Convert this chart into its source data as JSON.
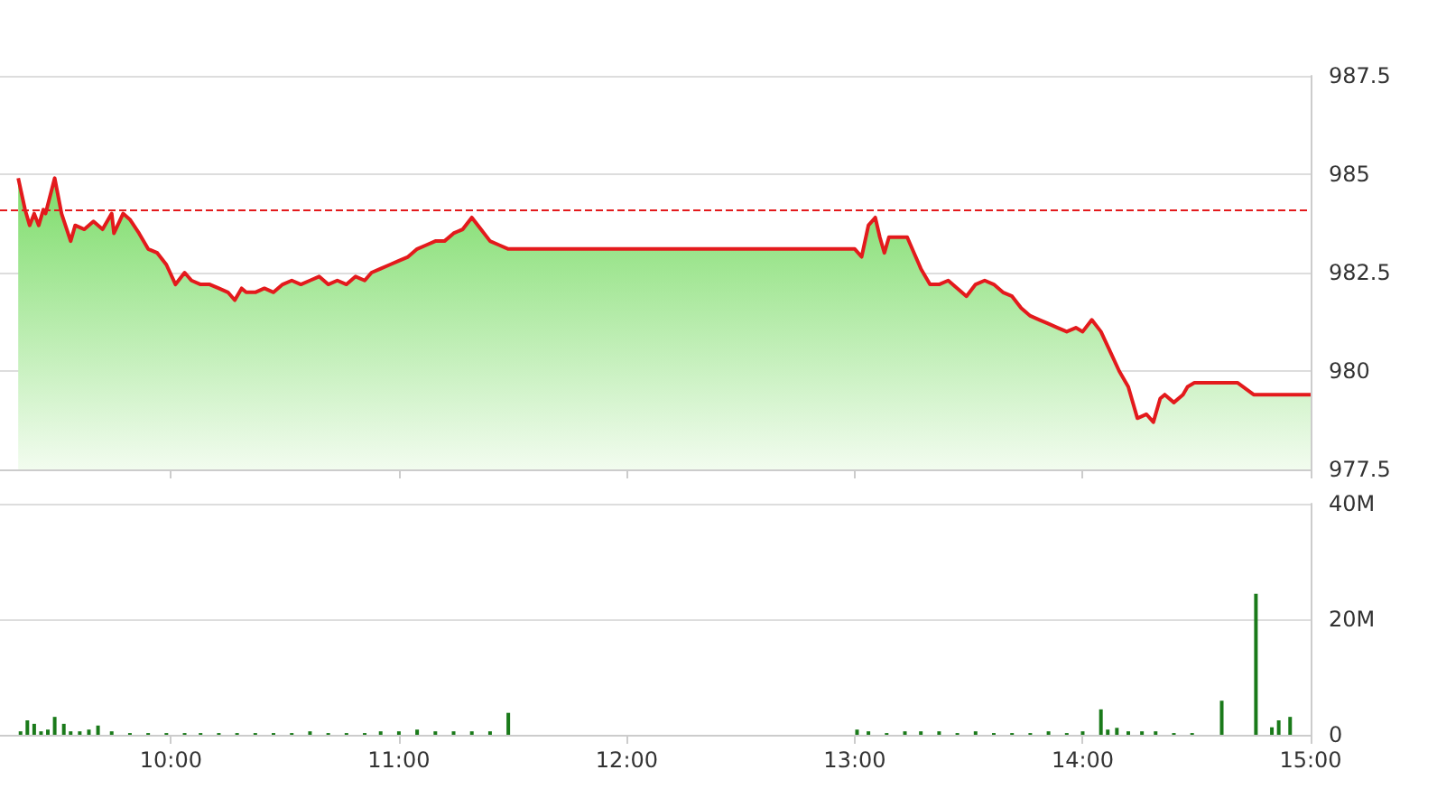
{
  "chart_data": [
    {
      "type": "area",
      "tick_labels": "y",
      "grid": "y",
      "marker": "none",
      "line_style": "solid",
      "xlim": [
        9.25,
        15
      ],
      "xticks": [
        {
          "value": 10,
          "label": null
        },
        {
          "value": 11,
          "label": null
        },
        {
          "value": 12,
          "label": null
        },
        {
          "value": 13,
          "label": null
        },
        {
          "value": 14,
          "label": null
        },
        {
          "value": 15,
          "label": null
        }
      ],
      "ylim": [
        977.5,
        987.5
      ],
      "yticks": [
        977.5,
        980,
        982.5,
        985,
        987.5
      ],
      "ref_lines": [
        {
          "axis": "y",
          "value": 984.1,
          "color": "#e31a1c",
          "line_style": "dashed"
        }
      ],
      "series": [
        {
          "color": "#e31a1c",
          "x": [
            9.33,
            9.36,
            9.38,
            9.4,
            9.42,
            9.44,
            9.45,
            9.49,
            9.52,
            9.56,
            9.58,
            9.62,
            9.66,
            9.7,
            9.74,
            9.75,
            9.79,
            9.82,
            9.86,
            9.9,
            9.94,
            9.98,
            10.02,
            10.06,
            10.09,
            10.13,
            10.17,
            10.21,
            10.25,
            10.28,
            10.31,
            10.33,
            10.37,
            10.41,
            10.45,
            10.49,
            10.53,
            10.57,
            10.61,
            10.65,
            10.69,
            10.73,
            10.77,
            10.81,
            10.85,
            10.88,
            10.92,
            10.96,
            11.0,
            11.04,
            11.08,
            11.12,
            11.16,
            11.2,
            11.24,
            11.28,
            11.32,
            11.36,
            11.4,
            11.44,
            11.48,
            11.52,
            11.56,
            13.0,
            13.03,
            13.06,
            13.09,
            13.11,
            13.13,
            13.15,
            13.2,
            13.23,
            13.26,
            13.29,
            13.33,
            13.37,
            13.41,
            13.45,
            13.49,
            13.53,
            13.57,
            13.61,
            13.65,
            13.69,
            13.73,
            13.77,
            13.81,
            13.85,
            13.89,
            13.93,
            13.97,
            14.0,
            14.04,
            14.08,
            14.12,
            14.16,
            14.2,
            14.24,
            14.28,
            14.31,
            14.34,
            14.36,
            14.4,
            14.44,
            14.46,
            14.49,
            14.68,
            14.75,
            15.0
          ],
          "values": [
            984.9,
            984.1,
            983.7,
            984.0,
            983.7,
            984.1,
            984.0,
            984.9,
            984.0,
            983.3,
            983.7,
            983.6,
            983.8,
            983.6,
            984.0,
            983.5,
            984.0,
            983.85,
            983.5,
            983.1,
            983.0,
            982.7,
            982.2,
            982.5,
            982.3,
            982.2,
            982.2,
            982.1,
            982.0,
            981.8,
            982.1,
            982.0,
            982.0,
            982.1,
            982.0,
            982.2,
            982.3,
            982.2,
            982.3,
            982.4,
            982.2,
            982.3,
            982.2,
            982.4,
            982.3,
            982.5,
            982.6,
            982.7,
            982.8,
            982.9,
            983.1,
            983.2,
            983.3,
            983.3,
            983.5,
            983.6,
            983.9,
            983.6,
            983.3,
            983.2,
            983.1,
            983.1,
            983.1,
            983.1,
            982.9,
            983.7,
            983.9,
            983.4,
            983.0,
            983.4,
            983.4,
            983.4,
            983.0,
            982.6,
            982.2,
            982.2,
            982.3,
            982.1,
            981.9,
            982.2,
            982.3,
            982.2,
            982.0,
            981.9,
            981.6,
            981.4,
            981.3,
            981.2,
            981.1,
            981.0,
            981.1,
            981.0,
            981.3,
            981.0,
            980.5,
            980.0,
            979.6,
            978.8,
            978.9,
            978.7,
            979.3,
            979.4,
            979.2,
            979.4,
            979.6,
            979.7,
            979.7,
            979.4,
            979.4
          ]
        }
      ]
    },
    {
      "type": "bar",
      "grid": "y",
      "xlim": [
        9.25,
        15
      ],
      "xticks": [
        {
          "value": 10,
          "label": "10:00"
        },
        {
          "value": 11,
          "label": "11:00"
        },
        {
          "value": 12,
          "label": "12:00"
        },
        {
          "value": 13,
          "label": "13:00"
        },
        {
          "value": 14,
          "label": "14:00"
        },
        {
          "value": 15,
          "label": "15:00"
        }
      ],
      "ylim": [
        0,
        40
      ],
      "yticks": [
        0,
        {
          "value": 20,
          "label": "20M"
        },
        {
          "value": 40,
          "label": "40M"
        }
      ],
      "series": [
        {
          "color": "#1a7a1a",
          "x": [
            9.34,
            9.37,
            9.4,
            9.43,
            9.46,
            9.49,
            9.53,
            9.56,
            9.6,
            9.64,
            9.68,
            9.74,
            9.82,
            9.9,
            9.98,
            10.06,
            10.13,
            10.21,
            10.29,
            10.37,
            10.45,
            10.53,
            10.61,
            10.69,
            10.77,
            10.85,
            10.92,
            11.0,
            11.08,
            11.16,
            11.24,
            11.32,
            11.4,
            11.48,
            13.01,
            13.06,
            13.14,
            13.22,
            13.29,
            13.37,
            13.45,
            13.53,
            13.61,
            13.69,
            13.77,
            13.85,
            13.93,
            14.0,
            14.08,
            14.11,
            14.15,
            14.2,
            14.26,
            14.32,
            14.4,
            14.48,
            14.61,
            14.76,
            14.83,
            14.86,
            14.91
          ],
          "values": [
            0.6,
            2.5,
            1.9,
            0.6,
            0.9,
            3.1,
            1.9,
            0.6,
            0.6,
            0.9,
            1.6,
            0.6,
            0.3,
            0.3,
            0.3,
            0.3,
            0.3,
            0.3,
            0.3,
            0.3,
            0.3,
            0.3,
            0.6,
            0.3,
            0.3,
            0.3,
            0.6,
            0.6,
            0.9,
            0.6,
            0.6,
            0.6,
            0.6,
            3.8,
            0.9,
            0.6,
            0.3,
            0.6,
            0.6,
            0.6,
            0.3,
            0.6,
            0.3,
            0.3,
            0.3,
            0.6,
            0.3,
            0.6,
            4.4,
            0.9,
            1.2,
            0.6,
            0.6,
            0.6,
            0.3,
            0.3,
            5.9,
            24.4,
            1.3,
            2.5,
            3.1
          ]
        }
      ]
    }
  ]
}
